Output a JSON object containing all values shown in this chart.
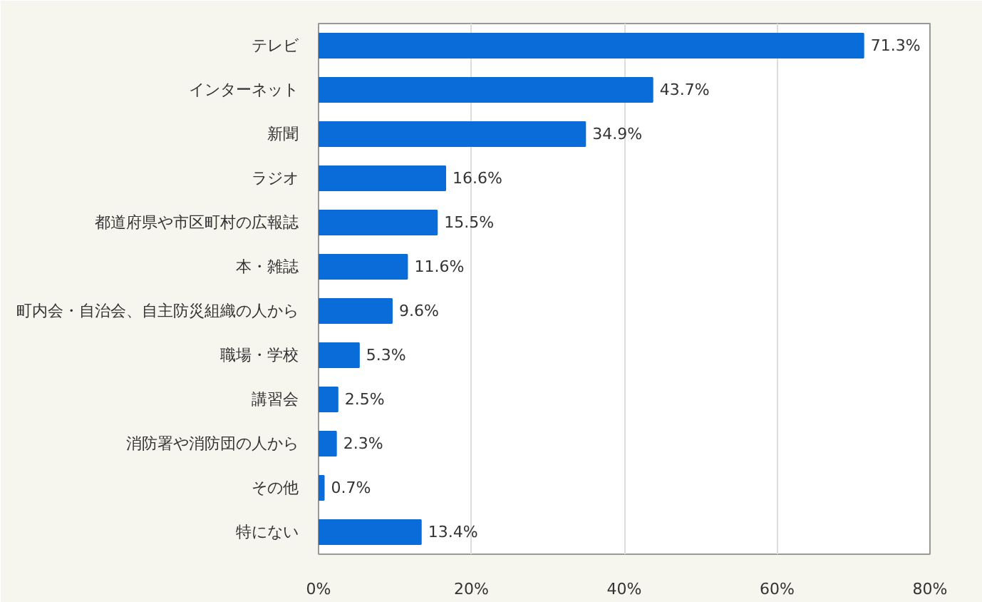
{
  "chart_data": {
    "type": "bar",
    "orientation": "horizontal",
    "categories": [
      "テレビ",
      "インターネット",
      "新聞",
      "ラジオ",
      "都道府県や市区町村の広報誌",
      "本・雑誌",
      "町内会・自治会、自主防災組織の人から",
      "職場・学校",
      "講習会",
      "消防署や消防団の人から",
      "その他",
      "特にない"
    ],
    "values": [
      71.3,
      43.7,
      34.9,
      16.6,
      15.5,
      11.6,
      9.6,
      5.3,
      2.5,
      2.3,
      0.7,
      13.4
    ],
    "value_labels": [
      "71.3%",
      "43.7%",
      "34.9%",
      "16.6%",
      "15.5%",
      "11.6%",
      "9.6%",
      "5.3%",
      "2.5%",
      "2.3%",
      "0.7%",
      "13.4%"
    ],
    "color": "#0a6cd8",
    "xlim": [
      0,
      80
    ],
    "xticks": [
      {
        "value": 0,
        "label": "0%"
      },
      {
        "value": 20,
        "label": "20%"
      },
      {
        "value": 40,
        "label": "40%"
      },
      {
        "value": 60,
        "label": "60%"
      },
      {
        "value": 80,
        "label": "80%"
      }
    ],
    "grid": "x"
  }
}
